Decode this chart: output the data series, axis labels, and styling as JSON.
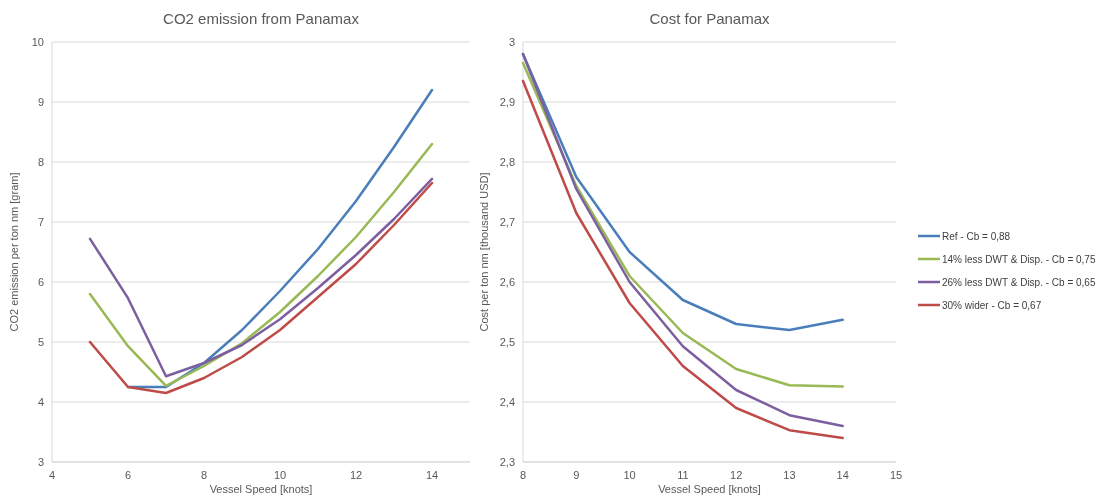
{
  "chart_data": [
    {
      "type": "line",
      "title": "CO2 emission from Panamax",
      "xlabel": "Vessel Speed [knots]",
      "ylabel": "CO2 emission per ton nm [gram]",
      "x": [
        5,
        6,
        7,
        8,
        9,
        10,
        11,
        12,
        13,
        14
      ],
      "xlim": [
        4,
        15
      ],
      "xticks": [
        4,
        6,
        8,
        10,
        12,
        14
      ],
      "ylim": [
        3,
        10
      ],
      "yticks": [
        3,
        4,
        5,
        6,
        7,
        8,
        9,
        10
      ],
      "grid": "y",
      "legend": false,
      "line_style": "solid",
      "series": [
        {
          "color": "#4a7ebb",
          "values": [
            null,
            4.25,
            4.25,
            4.65,
            5.2,
            5.85,
            6.55,
            7.35,
            8.25,
            9.2
          ]
        },
        {
          "color": "#98b954",
          "values": [
            5.8,
            4.93,
            4.27,
            4.6,
            4.98,
            5.5,
            6.1,
            6.75,
            7.5,
            8.3
          ]
        },
        {
          "color": "#7d5fa0",
          "values": [
            6.72,
            5.73,
            4.43,
            4.65,
            4.95,
            5.38,
            5.9,
            6.45,
            7.05,
            7.72
          ]
        },
        {
          "color": "#be4b48",
          "values": [
            5.0,
            4.25,
            4.15,
            4.4,
            4.75,
            5.2,
            5.75,
            6.3,
            6.95,
            7.65
          ]
        }
      ]
    },
    {
      "type": "line",
      "title": "Cost for Panamax",
      "xlabel": "Vessel Speed [knots]",
      "ylabel": "Cost per ton nm [thousand USD]",
      "x": [
        8,
        9,
        10,
        11,
        12,
        13,
        14
      ],
      "xlim": [
        8,
        15
      ],
      "xticks": [
        8,
        9,
        10,
        11,
        12,
        13,
        14,
        15
      ],
      "ylim": [
        2.3,
        3
      ],
      "yticks": [
        {
          "value": 2.3,
          "label": "2,3"
        },
        {
          "value": 2.4,
          "label": "2,4"
        },
        {
          "value": 2.5,
          "label": "2,5"
        },
        {
          "value": 2.6,
          "label": "2,6"
        },
        {
          "value": 2.7,
          "label": "2,7"
        },
        {
          "value": 2.8,
          "label": "2,8"
        },
        {
          "value": 2.9,
          "label": "2,9"
        },
        3
      ],
      "grid": "y",
      "legend": "right",
      "line_style": "solid",
      "series": [
        {
          "name": "Ref - Cb = 0,88",
          "color": "#4a7ebb",
          "values": [
            2.98,
            2.775,
            2.65,
            2.57,
            2.53,
            2.52,
            2.537
          ]
        },
        {
          "name": "14% less DWT & Disp. - Cb = 0,75",
          "color": "#98b954",
          "values": [
            2.965,
            2.76,
            2.61,
            2.515,
            2.455,
            2.428,
            2.426
          ]
        },
        {
          "name": "26% less DWT & Disp. - Cb = 0,65",
          "color": "#7d5fa0",
          "values": [
            2.98,
            2.755,
            2.6,
            2.493,
            2.42,
            2.378,
            2.36
          ]
        },
        {
          "name": "30% wider - Cb = 0,67",
          "color": "#be4b48",
          "values": [
            2.935,
            2.715,
            2.565,
            2.46,
            2.39,
            2.353,
            2.34
          ]
        }
      ]
    }
  ]
}
